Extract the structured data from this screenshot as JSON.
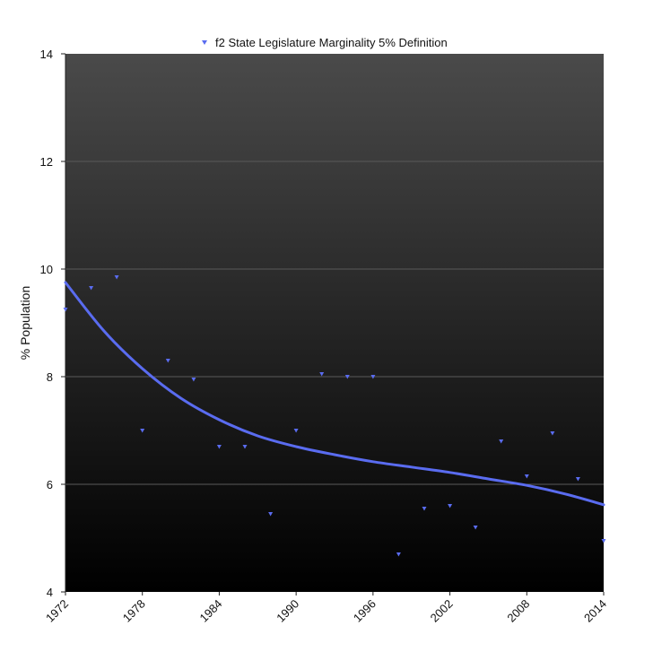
{
  "chart_data": {
    "type": "scatter",
    "title": "",
    "xlabel": "",
    "ylabel": "% Population",
    "xlim": [
      1972,
      2014
    ],
    "ylim": [
      4,
      14
    ],
    "x_ticks": [
      1972,
      1978,
      1984,
      1990,
      1996,
      2002,
      2008,
      2014
    ],
    "x_tick_labels": [
      "1972",
      "1978",
      "1984",
      "1990",
      "1996",
      "2002",
      "2008",
      "2014"
    ],
    "y_ticks": [
      4,
      6,
      8,
      10,
      12,
      14
    ],
    "y_tick_labels": [
      "4",
      "6",
      "8",
      "10",
      "12",
      "14"
    ],
    "grid": true,
    "legend": {
      "position": "top",
      "entries": [
        "f2 State Legislature Marginality 5% Definition"
      ]
    },
    "colors": {
      "series": "#5a6cf0",
      "plot_bg_top": "#4a4a4a",
      "plot_bg_bottom": "#000000",
      "grid": "#5a5a5a"
    },
    "series": [
      {
        "name": "f2 State Legislature Marginality 5% Definition",
        "marker": "triangle-down",
        "x": [
          1972,
          1974,
          1976,
          1978,
          1980,
          1982,
          1984,
          1986,
          1988,
          1990,
          1992,
          1994,
          1996,
          1998,
          2000,
          2002,
          2004,
          2006,
          2008,
          2010,
          2012,
          2014
        ],
        "y": [
          9.25,
          9.65,
          9.85,
          7.0,
          8.3,
          7.95,
          6.7,
          6.7,
          5.45,
          7.0,
          8.05,
          8.0,
          8.0,
          4.7,
          5.55,
          5.6,
          5.2,
          6.8,
          6.15,
          6.95,
          6.1,
          4.95
        ]
      }
    ],
    "trendline": {
      "name": "trend",
      "x": [
        1972,
        1975,
        1978,
        1981,
        1984,
        1987,
        1990,
        1993,
        1996,
        1999,
        2002,
        2005,
        2008,
        2011,
        2014
      ],
      "y": [
        9.75,
        8.85,
        8.15,
        7.6,
        7.2,
        6.9,
        6.7,
        6.55,
        6.42,
        6.32,
        6.22,
        6.1,
        5.98,
        5.82,
        5.62
      ]
    }
  }
}
